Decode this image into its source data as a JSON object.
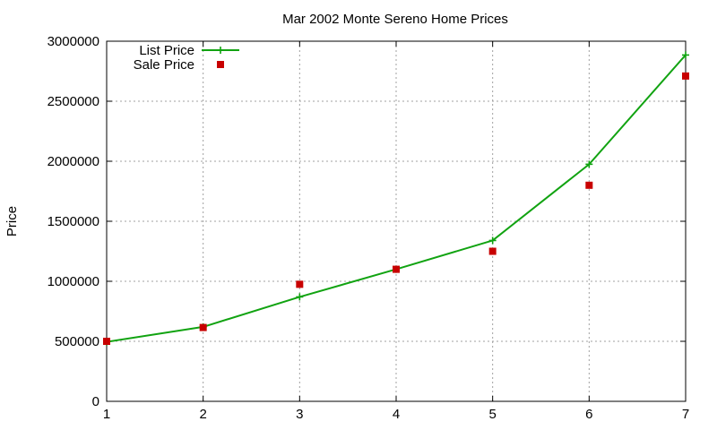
{
  "chart_data": {
    "type": "line",
    "title": "Mar 2002 Monte Sereno Home Prices",
    "xlabel": "",
    "ylabel": "Price",
    "x": [
      1,
      2,
      3,
      4,
      5,
      6,
      7
    ],
    "xlim": [
      1,
      7
    ],
    "ylim": [
      0,
      3000000
    ],
    "xticks": [
      "1",
      "2",
      "3",
      "4",
      "5",
      "6",
      "7"
    ],
    "yticks": [
      "0",
      "500000",
      "1000000",
      "1500000",
      "2000000",
      "2500000",
      "3000000"
    ],
    "grid": true,
    "legend_position": "top-left",
    "series": [
      {
        "name": "List Price",
        "style": "line-with-plus-markers",
        "color": "#11a311",
        "values": [
          495000,
          620000,
          870000,
          1100000,
          1340000,
          1975000,
          2885000
        ]
      },
      {
        "name": "Sale Price",
        "style": "square-markers",
        "color": "#c80000",
        "values": [
          500000,
          615000,
          975000,
          1100000,
          1250000,
          1800000,
          2710000
        ]
      }
    ]
  }
}
